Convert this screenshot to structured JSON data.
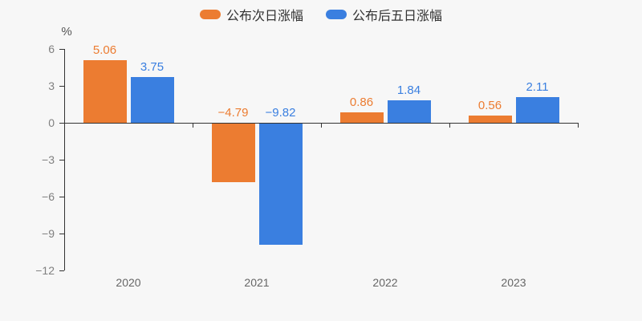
{
  "chart_data": {
    "type": "bar",
    "title": "",
    "categories": [
      "2020",
      "2021",
      "2022",
      "2023"
    ],
    "series": [
      {
        "name": "公布次日涨幅",
        "color": "#ec7c31",
        "values": [
          5.06,
          -4.79,
          0.86,
          0.56
        ]
      },
      {
        "name": "公布后五日涨幅",
        "color": "#3a7fe0",
        "values": [
          3.75,
          -9.82,
          1.84,
          2.11
        ]
      }
    ],
    "xlabel": "",
    "ylabel": "%",
    "yticks": [
      6,
      3,
      0,
      -3,
      -6,
      -9,
      -12
    ],
    "ylim": [
      -12,
      6
    ],
    "grid": "off",
    "legend_position": "top-center",
    "value_labels": "on",
    "colors": {
      "background": "#f7f7f7",
      "axis": "#333333",
      "tick_label": "#808080",
      "category_label": "#666666",
      "legend_text": "#333333"
    }
  }
}
